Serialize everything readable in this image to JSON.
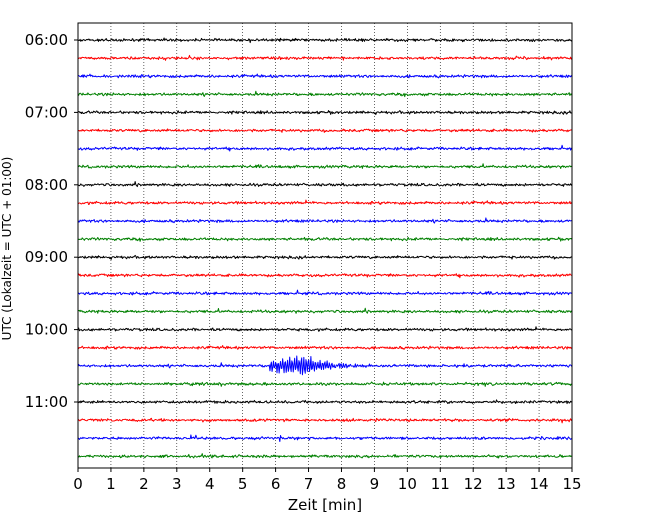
{
  "chart_data": {
    "type": "line",
    "title": "",
    "xlabel": "Zeit  [min]",
    "ylabel": "UTC (Lokalzeit = UTC + 01:00)",
    "xlim": [
      0,
      15
    ],
    "x_ticks": [
      "0",
      "1",
      "2",
      "3",
      "4",
      "5",
      "6",
      "7",
      "8",
      "9",
      "10",
      "11",
      "12",
      "13",
      "14",
      "15"
    ],
    "y_tick_labels": [
      "06:00",
      "07:00",
      "08:00",
      "09:00",
      "10:00",
      "11:00"
    ],
    "grid": "vertical dotted",
    "row_interval_minutes": 15,
    "color_cycle": [
      "#000000",
      "#ff0000",
      "#0000ff",
      "#008000"
    ],
    "rows": [
      {
        "start": "06:00",
        "color": "#000000"
      },
      {
        "start": "06:15",
        "color": "#ff0000"
      },
      {
        "start": "06:30",
        "color": "#0000ff"
      },
      {
        "start": "06:45",
        "color": "#008000"
      },
      {
        "start": "07:00",
        "color": "#000000"
      },
      {
        "start": "07:15",
        "color": "#ff0000"
      },
      {
        "start": "07:30",
        "color": "#0000ff"
      },
      {
        "start": "07:45",
        "color": "#008000"
      },
      {
        "start": "08:00",
        "color": "#000000"
      },
      {
        "start": "08:15",
        "color": "#ff0000"
      },
      {
        "start": "08:30",
        "color": "#0000ff"
      },
      {
        "start": "08:45",
        "color": "#008000"
      },
      {
        "start": "09:00",
        "color": "#000000"
      },
      {
        "start": "09:15",
        "color": "#ff0000"
      },
      {
        "start": "09:30",
        "color": "#0000ff"
      },
      {
        "start": "09:45",
        "color": "#008000"
      },
      {
        "start": "10:00",
        "color": "#000000"
      },
      {
        "start": "10:15",
        "color": "#ff0000"
      },
      {
        "start": "10:30",
        "color": "#0000ff",
        "event": {
          "onset_min": 5.8,
          "peak_min": 7.0,
          "end_min": 9.5
        }
      },
      {
        "start": "10:45",
        "color": "#008000"
      },
      {
        "start": "11:00",
        "color": "#000000"
      },
      {
        "start": "11:15",
        "color": "#ff0000"
      },
      {
        "start": "11:30",
        "color": "#0000ff"
      },
      {
        "start": "11:45",
        "color": "#008000"
      }
    ]
  }
}
